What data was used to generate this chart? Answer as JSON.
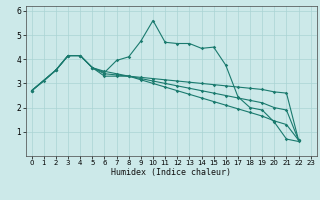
{
  "xlabel": "Humidex (Indice chaleur)",
  "bg_color": "#cce9e9",
  "grid_color": "#aad4d4",
  "line_color": "#1a7a6e",
  "xlim": [
    -0.5,
    23.5
  ],
  "ylim": [
    0,
    6.2
  ],
  "yticks": [
    1,
    2,
    3,
    4,
    5,
    6
  ],
  "xticks": [
    0,
    1,
    2,
    3,
    4,
    5,
    6,
    7,
    8,
    9,
    10,
    11,
    12,
    13,
    14,
    15,
    16,
    17,
    18,
    19,
    20,
    21,
    22,
    23
  ],
  "series": [
    {
      "x": [
        0,
        1,
        2,
        3,
        4,
        5,
        6,
        7,
        8,
        9,
        10,
        11,
        12,
        13,
        14,
        15,
        16,
        17,
        18,
        19,
        20,
        21,
        22
      ],
      "y": [
        2.7,
        3.1,
        3.55,
        4.15,
        4.15,
        3.65,
        3.45,
        3.95,
        4.1,
        4.75,
        5.6,
        4.7,
        4.65,
        4.65,
        4.45,
        4.5,
        3.75,
        2.45,
        2.0,
        1.9,
        1.4,
        0.7,
        0.6
      ]
    },
    {
      "x": [
        0,
        2,
        3,
        4,
        5,
        6,
        7,
        8,
        9,
        10,
        11,
        12,
        13,
        14,
        15,
        16,
        17,
        18,
        19,
        20,
        21,
        22
      ],
      "y": [
        2.7,
        3.55,
        4.15,
        4.15,
        3.65,
        3.3,
        3.3,
        3.3,
        3.25,
        3.2,
        3.15,
        3.1,
        3.05,
        3.0,
        2.95,
        2.9,
        2.85,
        2.8,
        2.75,
        2.65,
        2.6,
        0.65
      ]
    },
    {
      "x": [
        0,
        2,
        3,
        4,
        5,
        6,
        7,
        8,
        9,
        10,
        11,
        12,
        13,
        14,
        15,
        16,
        17,
        18,
        19,
        20,
        21,
        22
      ],
      "y": [
        2.7,
        3.55,
        4.15,
        4.15,
        3.65,
        3.4,
        3.35,
        3.3,
        3.2,
        3.1,
        3.0,
        2.9,
        2.8,
        2.7,
        2.6,
        2.5,
        2.4,
        2.3,
        2.2,
        2.0,
        1.9,
        0.65
      ]
    },
    {
      "x": [
        0,
        2,
        3,
        4,
        5,
        6,
        7,
        8,
        9,
        10,
        11,
        12,
        13,
        14,
        15,
        16,
        17,
        18,
        19,
        20,
        21,
        22
      ],
      "y": [
        2.7,
        3.55,
        4.15,
        4.15,
        3.65,
        3.5,
        3.4,
        3.3,
        3.15,
        3.0,
        2.85,
        2.7,
        2.55,
        2.4,
        2.25,
        2.1,
        1.95,
        1.8,
        1.65,
        1.45,
        1.3,
        0.65
      ]
    }
  ]
}
